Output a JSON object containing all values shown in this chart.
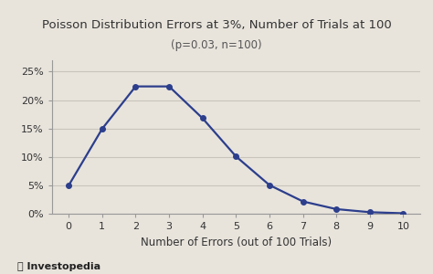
{
  "title": "Poisson Distribution Errors at 3%, Number of Trials at 100",
  "subtitle": "(p=0.03, n=100)",
  "xlabel": "Number of Errors (out of 100 Trials)",
  "ylabel": "",
  "x_values": [
    0,
    1,
    2,
    3,
    4,
    5,
    6,
    7,
    8,
    9,
    10
  ],
  "y_values": [
    0.0498,
    0.1494,
    0.224,
    0.224,
    0.168,
    0.1008,
    0.0504,
    0.0216,
    0.0081,
    0.0027,
    0.0008
  ],
  "line_color": "#2c3e8c",
  "marker": "o",
  "marker_size": 4,
  "line_width": 1.6,
  "background_color": "#e8e4dc",
  "plot_background": "#e8e4dc",
  "grid_color": "#c8c4bc",
  "title_fontsize": 9.5,
  "subtitle_fontsize": 8.5,
  "xlabel_fontsize": 8.5,
  "tick_fontsize": 8,
  "ylim": [
    0,
    0.27
  ],
  "yticks": [
    0,
    0.05,
    0.1,
    0.15,
    0.2,
    0.25
  ],
  "ytick_labels": [
    "0%",
    "5%",
    "10%",
    "15%",
    "20%",
    "25%"
  ],
  "xticks": [
    0,
    1,
    2,
    3,
    4,
    5,
    6,
    7,
    8,
    9,
    10
  ],
  "spine_color": "#999999",
  "investopedia_text": "Investopedia",
  "investopedia_fontsize": 8
}
